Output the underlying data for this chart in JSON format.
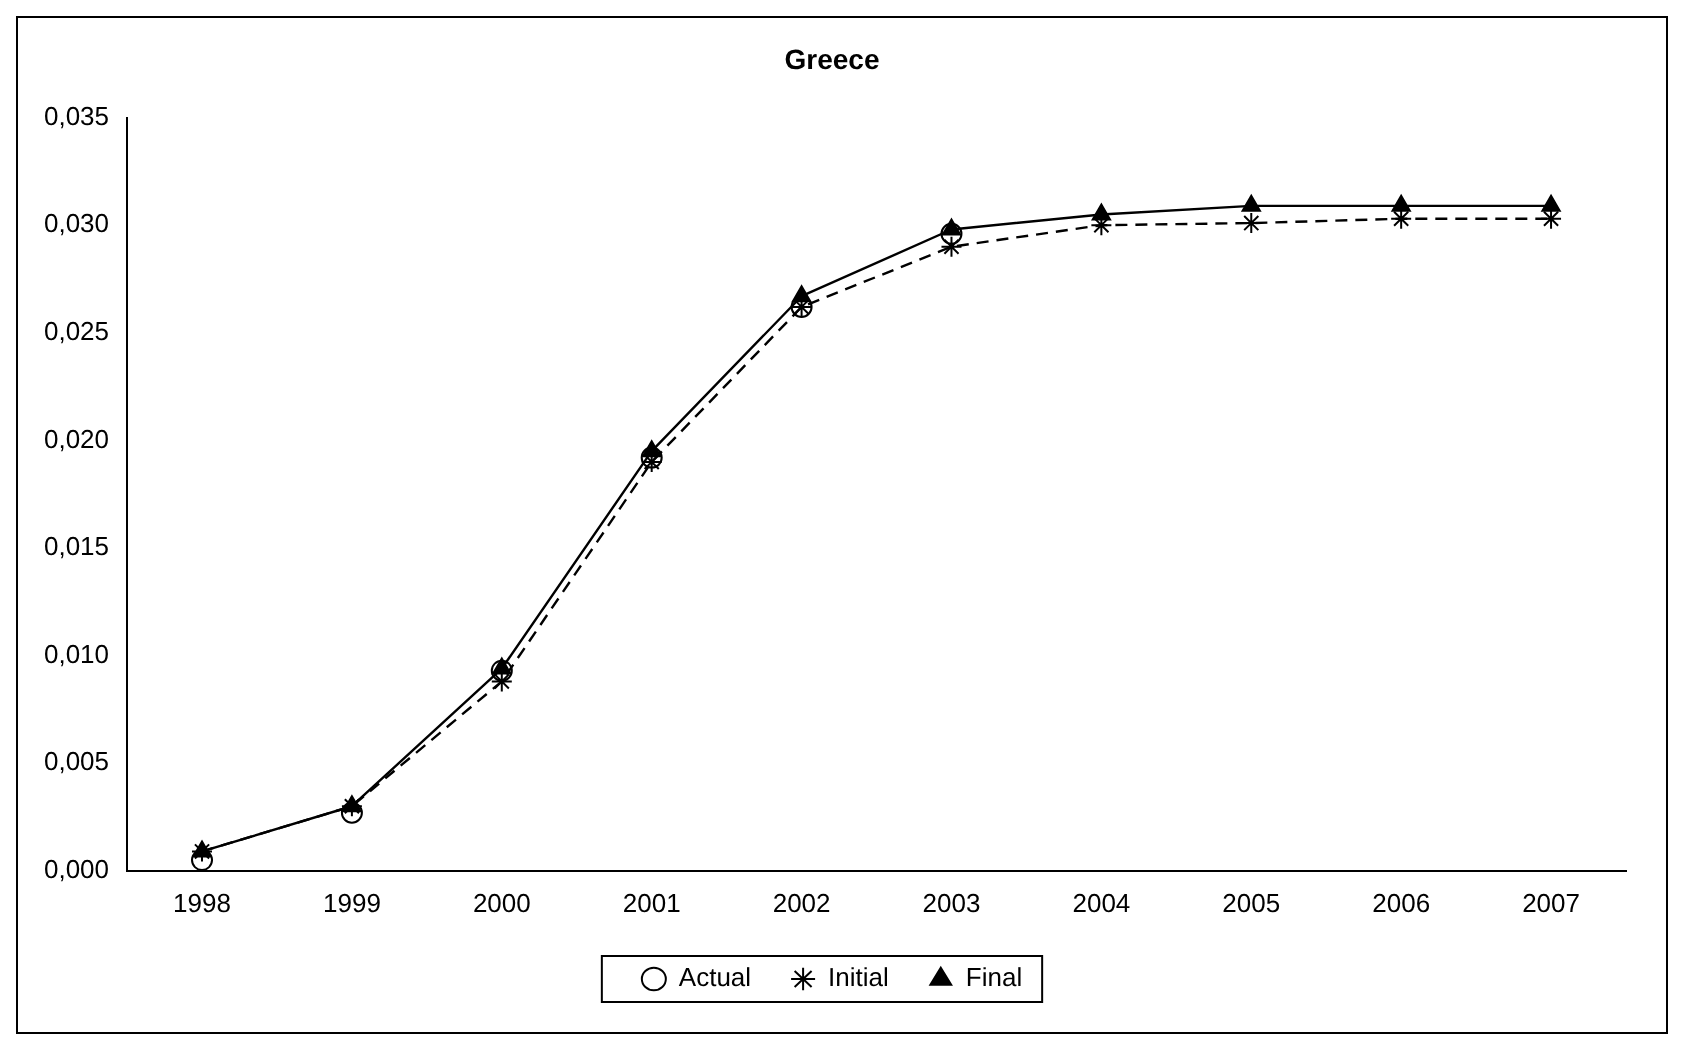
{
  "chart_data": {
    "type": "line",
    "title": "Greece",
    "categories": [
      "1998",
      "1999",
      "2000",
      "2001",
      "2002",
      "2003",
      "2004",
      "2005",
      "2006",
      "2007"
    ],
    "series": [
      {
        "name": "Actual",
        "type": "scatter",
        "color": "#000000",
        "marker": "circle",
        "values": [
          0.0005,
          0.0027,
          0.0093,
          0.0192,
          0.0262,
          0.0296,
          null,
          null,
          null,
          null
        ]
      },
      {
        "name": "Initial",
        "color": "#000000",
        "marker": "cross",
        "line_style": "dashed",
        "values": [
          0.0009,
          0.003,
          0.0088,
          0.019,
          0.0262,
          0.029,
          0.03,
          0.0301,
          0.0303,
          0.0303
        ]
      },
      {
        "name": "Final",
        "color": "#000000",
        "marker": "triangle",
        "line_style": "solid",
        "values": [
          0.0009,
          0.003,
          0.0094,
          0.0195,
          0.0267,
          0.0298,
          0.0305,
          0.0309,
          0.0309,
          0.0309
        ]
      }
    ],
    "ylim": [
      0,
      0.035
    ],
    "yticks": [
      {
        "value": 0,
        "label": "0,000"
      },
      {
        "value": 0.005,
        "label": "0,005"
      },
      {
        "value": 0.01,
        "label": "0,010"
      },
      {
        "value": 0.015,
        "label": "0,015"
      },
      {
        "value": 0.02,
        "label": "0,020"
      },
      {
        "value": 0.025,
        "label": "0,025"
      },
      {
        "value": 0.03,
        "label": "0,030"
      },
      {
        "value": 0.035,
        "label": "0,035"
      }
    ],
    "grid": false,
    "legend": "bottom"
  }
}
